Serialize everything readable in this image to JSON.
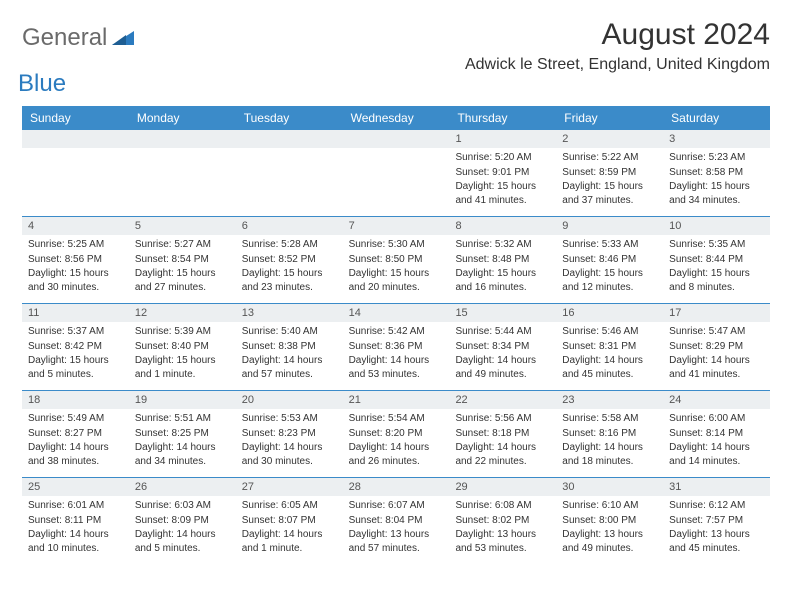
{
  "brand": {
    "part1": "General",
    "part2": "Blue"
  },
  "title": "August 2024",
  "location": "Adwick le Street, England, United Kingdom",
  "colors": {
    "header_bg": "#3b8bc9",
    "header_text": "#ffffff",
    "daynum_bg": "#eceff1",
    "row_border": "#3b8bc9",
    "body_text": "#333333",
    "logo_gray": "#6a6a6a",
    "logo_blue": "#2b7bbf"
  },
  "day_names": [
    "Sunday",
    "Monday",
    "Tuesday",
    "Wednesday",
    "Thursday",
    "Friday",
    "Saturday"
  ],
  "weeks": [
    [
      {
        "n": "",
        "sr": "",
        "ss": "",
        "dl": ""
      },
      {
        "n": "",
        "sr": "",
        "ss": "",
        "dl": ""
      },
      {
        "n": "",
        "sr": "",
        "ss": "",
        "dl": ""
      },
      {
        "n": "",
        "sr": "",
        "ss": "",
        "dl": ""
      },
      {
        "n": "1",
        "sr": "Sunrise: 5:20 AM",
        "ss": "Sunset: 9:01 PM",
        "dl": "Daylight: 15 hours and 41 minutes."
      },
      {
        "n": "2",
        "sr": "Sunrise: 5:22 AM",
        "ss": "Sunset: 8:59 PM",
        "dl": "Daylight: 15 hours and 37 minutes."
      },
      {
        "n": "3",
        "sr": "Sunrise: 5:23 AM",
        "ss": "Sunset: 8:58 PM",
        "dl": "Daylight: 15 hours and 34 minutes."
      }
    ],
    [
      {
        "n": "4",
        "sr": "Sunrise: 5:25 AM",
        "ss": "Sunset: 8:56 PM",
        "dl": "Daylight: 15 hours and 30 minutes."
      },
      {
        "n": "5",
        "sr": "Sunrise: 5:27 AM",
        "ss": "Sunset: 8:54 PM",
        "dl": "Daylight: 15 hours and 27 minutes."
      },
      {
        "n": "6",
        "sr": "Sunrise: 5:28 AM",
        "ss": "Sunset: 8:52 PM",
        "dl": "Daylight: 15 hours and 23 minutes."
      },
      {
        "n": "7",
        "sr": "Sunrise: 5:30 AM",
        "ss": "Sunset: 8:50 PM",
        "dl": "Daylight: 15 hours and 20 minutes."
      },
      {
        "n": "8",
        "sr": "Sunrise: 5:32 AM",
        "ss": "Sunset: 8:48 PM",
        "dl": "Daylight: 15 hours and 16 minutes."
      },
      {
        "n": "9",
        "sr": "Sunrise: 5:33 AM",
        "ss": "Sunset: 8:46 PM",
        "dl": "Daylight: 15 hours and 12 minutes."
      },
      {
        "n": "10",
        "sr": "Sunrise: 5:35 AM",
        "ss": "Sunset: 8:44 PM",
        "dl": "Daylight: 15 hours and 8 minutes."
      }
    ],
    [
      {
        "n": "11",
        "sr": "Sunrise: 5:37 AM",
        "ss": "Sunset: 8:42 PM",
        "dl": "Daylight: 15 hours and 5 minutes."
      },
      {
        "n": "12",
        "sr": "Sunrise: 5:39 AM",
        "ss": "Sunset: 8:40 PM",
        "dl": "Daylight: 15 hours and 1 minute."
      },
      {
        "n": "13",
        "sr": "Sunrise: 5:40 AM",
        "ss": "Sunset: 8:38 PM",
        "dl": "Daylight: 14 hours and 57 minutes."
      },
      {
        "n": "14",
        "sr": "Sunrise: 5:42 AM",
        "ss": "Sunset: 8:36 PM",
        "dl": "Daylight: 14 hours and 53 minutes."
      },
      {
        "n": "15",
        "sr": "Sunrise: 5:44 AM",
        "ss": "Sunset: 8:34 PM",
        "dl": "Daylight: 14 hours and 49 minutes."
      },
      {
        "n": "16",
        "sr": "Sunrise: 5:46 AM",
        "ss": "Sunset: 8:31 PM",
        "dl": "Daylight: 14 hours and 45 minutes."
      },
      {
        "n": "17",
        "sr": "Sunrise: 5:47 AM",
        "ss": "Sunset: 8:29 PM",
        "dl": "Daylight: 14 hours and 41 minutes."
      }
    ],
    [
      {
        "n": "18",
        "sr": "Sunrise: 5:49 AM",
        "ss": "Sunset: 8:27 PM",
        "dl": "Daylight: 14 hours and 38 minutes."
      },
      {
        "n": "19",
        "sr": "Sunrise: 5:51 AM",
        "ss": "Sunset: 8:25 PM",
        "dl": "Daylight: 14 hours and 34 minutes."
      },
      {
        "n": "20",
        "sr": "Sunrise: 5:53 AM",
        "ss": "Sunset: 8:23 PM",
        "dl": "Daylight: 14 hours and 30 minutes."
      },
      {
        "n": "21",
        "sr": "Sunrise: 5:54 AM",
        "ss": "Sunset: 8:20 PM",
        "dl": "Daylight: 14 hours and 26 minutes."
      },
      {
        "n": "22",
        "sr": "Sunrise: 5:56 AM",
        "ss": "Sunset: 8:18 PM",
        "dl": "Daylight: 14 hours and 22 minutes."
      },
      {
        "n": "23",
        "sr": "Sunrise: 5:58 AM",
        "ss": "Sunset: 8:16 PM",
        "dl": "Daylight: 14 hours and 18 minutes."
      },
      {
        "n": "24",
        "sr": "Sunrise: 6:00 AM",
        "ss": "Sunset: 8:14 PM",
        "dl": "Daylight: 14 hours and 14 minutes."
      }
    ],
    [
      {
        "n": "25",
        "sr": "Sunrise: 6:01 AM",
        "ss": "Sunset: 8:11 PM",
        "dl": "Daylight: 14 hours and 10 minutes."
      },
      {
        "n": "26",
        "sr": "Sunrise: 6:03 AM",
        "ss": "Sunset: 8:09 PM",
        "dl": "Daylight: 14 hours and 5 minutes."
      },
      {
        "n": "27",
        "sr": "Sunrise: 6:05 AM",
        "ss": "Sunset: 8:07 PM",
        "dl": "Daylight: 14 hours and 1 minute."
      },
      {
        "n": "28",
        "sr": "Sunrise: 6:07 AM",
        "ss": "Sunset: 8:04 PM",
        "dl": "Daylight: 13 hours and 57 minutes."
      },
      {
        "n": "29",
        "sr": "Sunrise: 6:08 AM",
        "ss": "Sunset: 8:02 PM",
        "dl": "Daylight: 13 hours and 53 minutes."
      },
      {
        "n": "30",
        "sr": "Sunrise: 6:10 AM",
        "ss": "Sunset: 8:00 PM",
        "dl": "Daylight: 13 hours and 49 minutes."
      },
      {
        "n": "31",
        "sr": "Sunrise: 6:12 AM",
        "ss": "Sunset: 7:57 PM",
        "dl": "Daylight: 13 hours and 45 minutes."
      }
    ]
  ]
}
